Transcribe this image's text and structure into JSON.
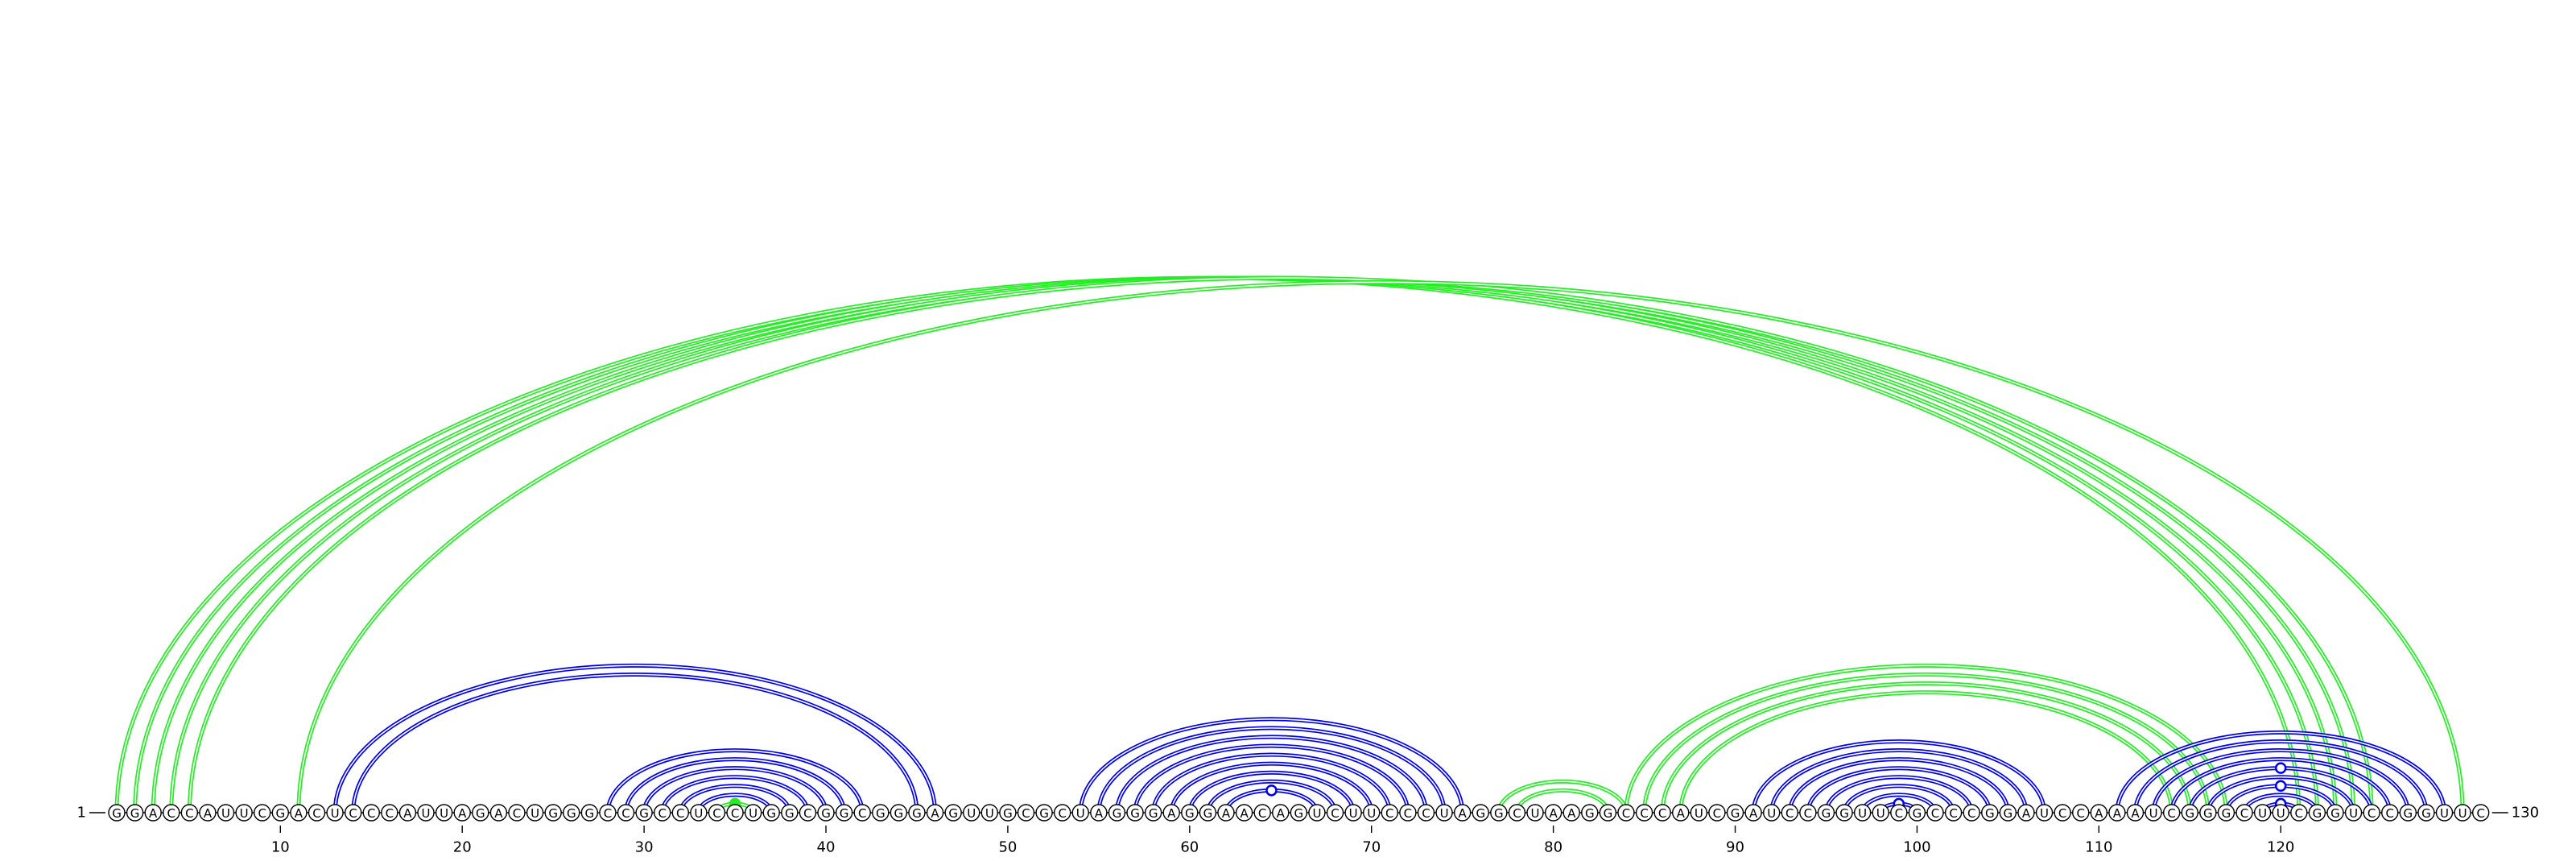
{
  "diagram": {
    "start_label": "1",
    "end_label": "130",
    "sequence": "GGACCAUUCGACUCCCAUUAGACUGGGCCGCCUCCUGGCGGCGGGAGUUGCGCUAGGGAGGAACAGUCUUCCCUAGGCUAAGGCCCAUCGAUCCGGUUCGCCCGGAUCCAAAUCGGGCUUCGGUCCGGUUC",
    "tick_labels": [
      "10",
      "20",
      "30",
      "40",
      "50",
      "60",
      "70",
      "80",
      "90",
      "100",
      "110",
      "120"
    ],
    "colors": {
      "blue": "#0000ee",
      "green": "#22ee22",
      "base": "#000000"
    },
    "arcs": [
      {
        "i": 1,
        "j": 121,
        "color": "green"
      },
      {
        "i": 2,
        "j": 122,
        "color": "green"
      },
      {
        "i": 3,
        "j": 123,
        "color": "green"
      },
      {
        "i": 4,
        "j": 124,
        "color": "green"
      },
      {
        "i": 5,
        "j": 125,
        "color": "green"
      },
      {
        "i": 13,
        "j": 46,
        "color": "blue"
      },
      {
        "i": 14,
        "j": 45,
        "color": "blue"
      },
      {
        "i": 28,
        "j": 42,
        "color": "blue"
      },
      {
        "i": 29,
        "j": 41,
        "color": "blue"
      },
      {
        "i": 30,
        "j": 40,
        "color": "blue"
      },
      {
        "i": 31,
        "j": 39,
        "color": "blue"
      },
      {
        "i": 32,
        "j": 38,
        "color": "blue"
      },
      {
        "i": 33,
        "j": 37,
        "color": "blue"
      },
      {
        "i": 34,
        "j": 36,
        "color": "green"
      },
      {
        "i": 54,
        "j": 75,
        "color": "blue"
      },
      {
        "i": 55,
        "j": 74,
        "color": "blue"
      },
      {
        "i": 56,
        "j": 73,
        "color": "blue"
      },
      {
        "i": 57,
        "j": 72,
        "color": "blue"
      },
      {
        "i": 58,
        "j": 71,
        "color": "blue"
      },
      {
        "i": 59,
        "j": 70,
        "color": "blue"
      },
      {
        "i": 60,
        "j": 69,
        "color": "blue"
      },
      {
        "i": 61,
        "j": 68,
        "color": "blue"
      },
      {
        "i": 62,
        "j": 67,
        "color": "blue"
      },
      {
        "i": 77,
        "j": 84,
        "color": "green"
      },
      {
        "i": 78,
        "j": 83,
        "color": "green"
      },
      {
        "i": 84,
        "j": 117,
        "color": "green"
      },
      {
        "i": 85,
        "j": 116,
        "color": "green"
      },
      {
        "i": 86,
        "j": 115,
        "color": "green"
      },
      {
        "i": 87,
        "j": 114,
        "color": "green"
      },
      {
        "i": 91,
        "j": 107,
        "color": "blue"
      },
      {
        "i": 92,
        "j": 106,
        "color": "blue"
      },
      {
        "i": 93,
        "j": 105,
        "color": "blue"
      },
      {
        "i": 94,
        "j": 104,
        "color": "blue"
      },
      {
        "i": 95,
        "j": 103,
        "color": "blue"
      },
      {
        "i": 96,
        "j": 102,
        "color": "blue"
      },
      {
        "i": 97,
        "j": 101,
        "color": "blue"
      },
      {
        "i": 98,
        "j": 100,
        "color": "blue"
      },
      {
        "i": 111,
        "j": 129,
        "color": "blue"
      },
      {
        "i": 112,
        "j": 128,
        "color": "blue"
      },
      {
        "i": 113,
        "j": 127,
        "color": "blue"
      },
      {
        "i": 114,
        "j": 126,
        "color": "blue"
      },
      {
        "i": 115,
        "j": 125,
        "color": "blue"
      },
      {
        "i": 116,
        "j": 124,
        "color": "blue"
      },
      {
        "i": 117,
        "j": 123,
        "color": "blue"
      },
      {
        "i": 118,
        "j": 122,
        "color": "blue"
      },
      {
        "i": 119,
        "j": 121,
        "color": "blue"
      },
      {
        "i": 11,
        "j": 130,
        "color": "green"
      }
    ],
    "markers": [
      {
        "i": 34,
        "j": 36,
        "style": "filled",
        "color": "green"
      },
      {
        "i": 62,
        "j": 67,
        "style": "open",
        "color": "blue"
      },
      {
        "i": 98,
        "j": 100,
        "style": "open",
        "color": "blue"
      },
      {
        "i": 115,
        "j": 125,
        "style": "open",
        "color": "blue"
      },
      {
        "i": 117,
        "j": 123,
        "style": "open",
        "color": "blue"
      },
      {
        "i": 119,
        "j": 121,
        "style": "open",
        "color": "blue"
      }
    ]
  }
}
